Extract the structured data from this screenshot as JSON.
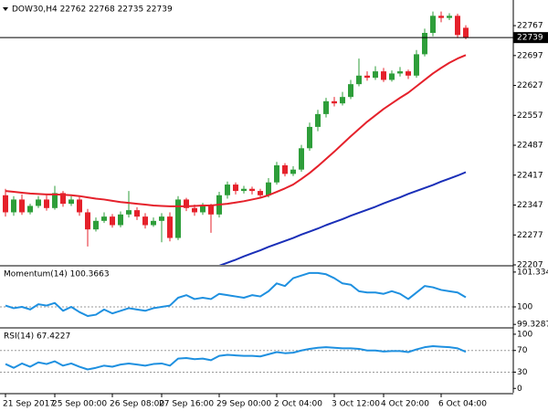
{
  "chart_data": [
    {
      "type": "candlestick",
      "title": "DOW30,H4  22762 22768 22735 22739",
      "categories": [
        "21 Sep 2017",
        null,
        null,
        null,
        null,
        null,
        "25 Sep 00:00",
        null,
        null,
        null,
        null,
        null,
        null,
        "26 Sep 08:00",
        null,
        null,
        null,
        null,
        null,
        "27 Sep 16:00",
        null,
        null,
        null,
        null,
        null,
        null,
        "29 Sep 00:00",
        null,
        null,
        null,
        null,
        null,
        null,
        "2 Oct 04:00",
        null,
        null,
        null,
        null,
        null,
        null,
        "3 Oct 12:00",
        null,
        null,
        null,
        null,
        null,
        "4 Oct 20:00",
        null,
        null,
        null,
        null,
        null,
        null,
        "6 Oct 04:00",
        null,
        null,
        null
      ],
      "open": [
        22370,
        22330,
        22360,
        22330,
        22345,
        22360,
        22340,
        22375,
        22350,
        22360,
        22330,
        22290,
        22310,
        22320,
        22300,
        22325,
        22335,
        22320,
        22300,
        22310,
        22320,
        22270,
        22360,
        22340,
        22330,
        22345,
        22325,
        22370,
        22395,
        22380,
        22385,
        22380,
        22370,
        22400,
        22440,
        22420,
        22430,
        22480,
        22530,
        22560,
        22590,
        22585,
        22600,
        22630,
        22650,
        22645,
        22660,
        22640,
        22655,
        22660,
        22650,
        22700,
        22750,
        22790,
        22785,
        22790,
        22762
      ],
      "high": [
        22385,
        22368,
        22372,
        22350,
        22368,
        22370,
        22392,
        22380,
        22368,
        22366,
        22338,
        22318,
        22330,
        22326,
        22332,
        22380,
        22342,
        22328,
        22318,
        22328,
        22330,
        22368,
        22364,
        22348,
        22352,
        22350,
        22378,
        22402,
        22400,
        22392,
        22390,
        22385,
        22410,
        22448,
        22445,
        22438,
        22488,
        22540,
        22570,
        22598,
        22600,
        22612,
        22640,
        22690,
        22660,
        22672,
        22668,
        22662,
        22670,
        22664,
        22710,
        22760,
        22800,
        22800,
        22796,
        22795,
        22768
      ],
      "low": [
        22320,
        22322,
        22324,
        22325,
        22340,
        22334,
        22336,
        22343,
        22345,
        22322,
        22250,
        22285,
        22305,
        22294,
        22295,
        22318,
        22312,
        22292,
        22296,
        22260,
        22262,
        22265,
        22333,
        22322,
        22324,
        22282,
        22318,
        22362,
        22372,
        22374,
        22372,
        22362,
        22365,
        22395,
        22414,
        22415,
        22425,
        22474,
        22520,
        22552,
        22578,
        22580,
        22595,
        22625,
        22638,
        22640,
        22635,
        22636,
        22648,
        22642,
        22645,
        22695,
        22742,
        22775,
        22780,
        22738,
        22735
      ],
      "close": [
        22330,
        22360,
        22330,
        22345,
        22360,
        22340,
        22375,
        22350,
        22360,
        22330,
        22290,
        22310,
        22320,
        22300,
        22325,
        22335,
        22320,
        22300,
        22310,
        22320,
        22270,
        22360,
        22340,
        22330,
        22345,
        22325,
        22370,
        22395,
        22380,
        22385,
        22380,
        22370,
        22400,
        22440,
        22420,
        22430,
        22480,
        22530,
        22560,
        22590,
        22585,
        22600,
        22630,
        22650,
        22645,
        22660,
        22640,
        22655,
        22660,
        22650,
        22700,
        22750,
        22790,
        22785,
        22790,
        22745,
        22739
      ],
      "up_color": "#2e9e3a",
      "down_color": "#e5212b",
      "lines": [
        {
          "color": "#e5212b",
          "values": [
            22380,
            22378,
            22376,
            22374,
            22373,
            22372,
            22372,
            22371,
            22370,
            22368,
            22365,
            22362,
            22360,
            22357,
            22354,
            22352,
            22350,
            22348,
            22346,
            22345,
            22344,
            22344,
            22344,
            22345,
            22346,
            22346,
            22348,
            22350,
            22353,
            22356,
            22360,
            22364,
            22370,
            22378,
            22386,
            22395,
            22408,
            22422,
            22438,
            22455,
            22472,
            22490,
            22508,
            22525,
            22542,
            22557,
            22572,
            22585,
            22598,
            22610,
            22625,
            22640,
            22655,
            22668,
            22680,
            22690,
            22698
          ]
        },
        {
          "color": "#1a2fb8",
          "values": [
            null,
            null,
            null,
            null,
            null,
            null,
            null,
            null,
            null,
            null,
            null,
            null,
            null,
            null,
            null,
            null,
            null,
            null,
            null,
            null,
            null,
            null,
            null,
            null,
            null,
            null,
            22205,
            22212,
            22219,
            22227,
            22234,
            22241,
            22249,
            22256,
            22263,
            22270,
            22278,
            22285,
            22292,
            22300,
            22307,
            22314,
            22322,
            22329,
            22336,
            22343,
            22351,
            22358,
            22365,
            22373,
            22380,
            22387,
            22394,
            22402,
            22409,
            22416,
            22424
          ]
        }
      ],
      "last_price": 22739,
      "ylim": [
        22207,
        22827
      ],
      "yticks": [
        22207,
        22277,
        22347,
        22417,
        22487,
        22557,
        22627,
        22697,
        22767
      ]
    },
    {
      "type": "line",
      "title": "Momentum(14) 100.3663",
      "color": "#1e90e0",
      "values": [
        100.05,
        99.95,
        100,
        99.9,
        100.1,
        100.05,
        100.15,
        99.85,
        100,
        99.8,
        99.65,
        99.7,
        99.9,
        99.75,
        99.85,
        99.95,
        99.9,
        99.85,
        99.95,
        100,
        100.05,
        100.35,
        100.45,
        100.3,
        100.35,
        100.3,
        100.5,
        100.45,
        100.4,
        100.35,
        100.45,
        100.4,
        100.6,
        100.9,
        100.8,
        101.1,
        101.2,
        101.3,
        101.3,
        101.25,
        101.1,
        100.9,
        100.85,
        100.6,
        100.55,
        100.55,
        100.5,
        100.6,
        100.5,
        100.3,
        100.55,
        100.8,
        100.75,
        100.65,
        100.6,
        100.55,
        100.3663
      ],
      "levels": [
        100
      ],
      "ylim": [
        99.23,
        101.54
      ],
      "yticks": [
        99.3287,
        100,
        101.3343
      ]
    },
    {
      "type": "line",
      "title": "RSI(14) 67.4227",
      "color": "#1e90e0",
      "values": [
        45,
        38,
        46,
        40,
        48,
        45,
        50,
        42,
        46,
        40,
        35,
        38,
        42,
        40,
        44,
        46,
        44,
        42,
        45,
        46,
        42,
        55,
        56,
        54,
        55,
        52,
        60,
        62,
        61,
        60,
        60,
        59,
        63,
        67,
        65,
        66,
        70,
        73,
        75,
        76,
        75,
        74,
        74,
        73,
        70,
        70,
        68,
        69,
        69,
        67,
        72,
        76,
        78,
        77,
        76,
        74,
        67.4227
      ],
      "levels": [
        30,
        70
      ],
      "ylim": [
        -8,
        110
      ],
      "yticks": [
        0,
        30,
        70,
        100
      ]
    }
  ]
}
